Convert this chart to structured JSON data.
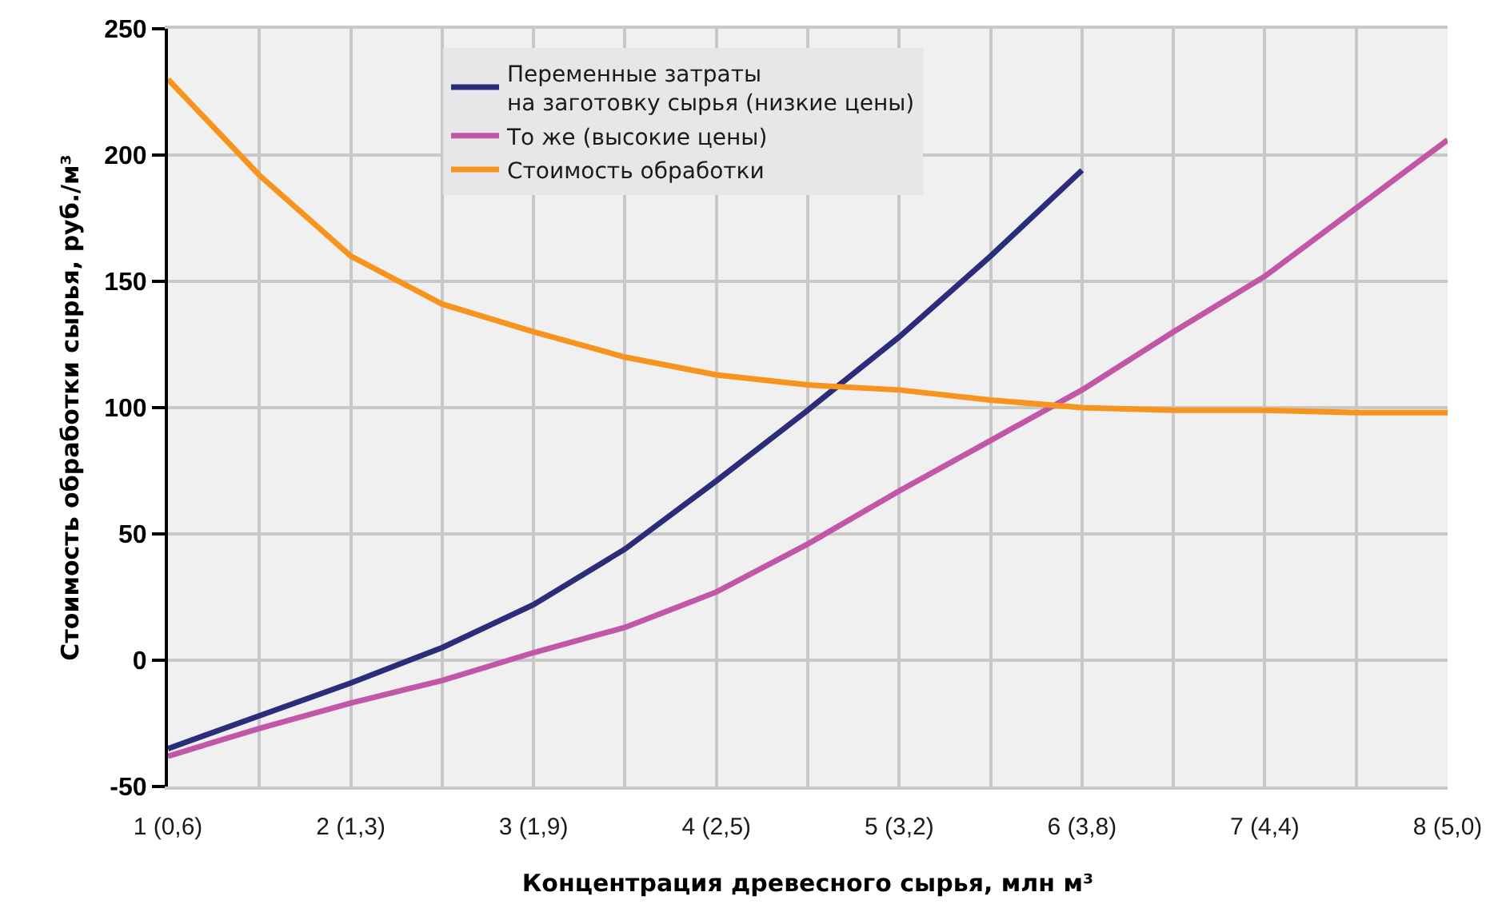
{
  "chart_data": {
    "type": "line",
    "xlabel": "Концентрация древесного сырья, млн м³",
    "ylabel": "Стоимость обработки сырья, руб./м³",
    "categories": [
      "1 (0,6)",
      null,
      "2 (1,3)",
      null,
      "3 (1,9)",
      null,
      "4 (2,5)",
      null,
      "5 (3,2)",
      null,
      "6 (3,8)",
      null,
      "7 (4,4)",
      null,
      "8 (5,0)"
    ],
    "ylim": [
      -50,
      250
    ],
    "yticks": [
      -50,
      0,
      50,
      100,
      150,
      200,
      250
    ],
    "grid": true,
    "legend": "top",
    "series": [
      {
        "name": "Переменные затраты\nна заготовку сырья (низкие цены)",
        "color": "#2b2d7a",
        "values": [
          -35,
          -22,
          -9,
          5,
          22,
          44,
          71,
          99,
          128,
          160,
          194,
          null,
          null,
          null,
          null
        ]
      },
      {
        "name": "То же (высокие цены)",
        "color": "#c257a8",
        "values": [
          -38,
          -27,
          -17,
          -8,
          3,
          13,
          27,
          46,
          67,
          87,
          107,
          130,
          152,
          179,
          206
        ]
      },
      {
        "name": "Стоимость обработки",
        "color": "#f7941d",
        "values": [
          230,
          192,
          160,
          141,
          130,
          120,
          113,
          109,
          107,
          103,
          100,
          99,
          99,
          98,
          98
        ]
      }
    ]
  }
}
